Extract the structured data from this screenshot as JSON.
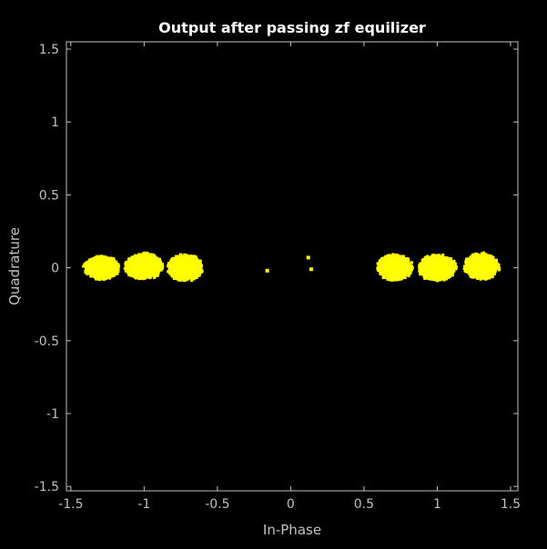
{
  "chart_data": {
    "type": "scatter",
    "title": "Output after passing zf equilizer",
    "xlabel": "In-Phase",
    "ylabel": "Quadrature",
    "xlim": [
      -1.53,
      1.55
    ],
    "ylim": [
      -1.53,
      1.55
    ],
    "xticks": [
      -1.5,
      -1,
      -0.5,
      0,
      0.5,
      1,
      1.5
    ],
    "xtick_labels": [
      "-1.5",
      "-1",
      "-0.5",
      "0",
      "0.5",
      "1",
      "1.5"
    ],
    "yticks": [
      -1.5,
      -1,
      -0.5,
      0,
      0.5,
      1,
      1.5
    ],
    "ytick_labels": [
      "-1.5",
      "-1",
      "-0.5",
      "0",
      "0.5",
      "1",
      "1.5"
    ],
    "grid": false,
    "background_color": "#000000",
    "axes_color": "#c0c0c0",
    "marker_color": "#ffff00",
    "clusters": [
      {
        "center": [
          -1.29,
          0.0
        ],
        "spread": [
          0.12,
          0.08
        ]
      },
      {
        "center": [
          -1.0,
          0.01
        ],
        "spread": [
          0.13,
          0.09
        ]
      },
      {
        "center": [
          -0.72,
          0.0
        ],
        "spread": [
          0.12,
          0.09
        ]
      },
      {
        "center": [
          0.71,
          0.0
        ],
        "spread": [
          0.12,
          0.09
        ]
      },
      {
        "center": [
          1.0,
          0.0
        ],
        "spread": [
          0.13,
          0.09
        ]
      },
      {
        "center": [
          1.3,
          0.01
        ],
        "spread": [
          0.12,
          0.09
        ]
      }
    ],
    "isolated_points": [
      {
        "x": -0.16,
        "y": -0.02
      },
      {
        "x": 0.12,
        "y": 0.07
      },
      {
        "x": 0.14,
        "y": -0.01
      }
    ]
  }
}
